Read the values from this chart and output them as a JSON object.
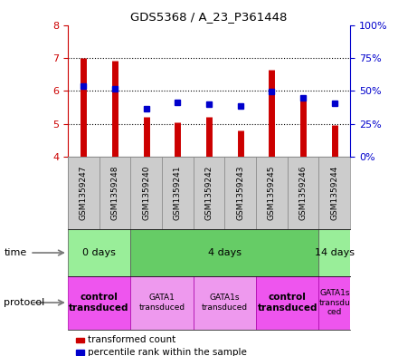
{
  "title": "GDS5368 / A_23_P361448",
  "samples": [
    "GSM1359247",
    "GSM1359248",
    "GSM1359240",
    "GSM1359241",
    "GSM1359242",
    "GSM1359243",
    "GSM1359245",
    "GSM1359246",
    "GSM1359244"
  ],
  "transformed_count": [
    7.0,
    6.9,
    5.2,
    5.05,
    5.2,
    4.8,
    6.65,
    5.8,
    4.95
  ],
  "percentile_rank": [
    6.15,
    6.05,
    5.45,
    5.65,
    5.6,
    5.55,
    5.97,
    5.78,
    5.62
  ],
  "bar_bottom": 4.0,
  "ylim": [
    4.0,
    8.0
  ],
  "yticks_left": [
    4,
    5,
    6,
    7,
    8
  ],
  "right_labels": [
    "0%",
    "25%",
    "50%",
    "75%",
    "100%"
  ],
  "bar_color": "#cc0000",
  "dot_color": "#0000cc",
  "sample_bg": "#cccccc",
  "time_groups": [
    {
      "label": "0 days",
      "start": 0,
      "end": 2,
      "color": "#99ee99"
    },
    {
      "label": "4 days",
      "start": 2,
      "end": 8,
      "color": "#66cc66"
    },
    {
      "label": "14 days",
      "start": 8,
      "end": 9,
      "color": "#99ee99"
    }
  ],
  "protocol_groups": [
    {
      "label": "control\ntransduced",
      "start": 0,
      "end": 2,
      "color": "#ee55ee",
      "bold": true
    },
    {
      "label": "GATA1\ntransduced",
      "start": 2,
      "end": 4,
      "color": "#ee99ee",
      "bold": false
    },
    {
      "label": "GATA1s\ntransduced",
      "start": 4,
      "end": 6,
      "color": "#ee99ee",
      "bold": false
    },
    {
      "label": "control\ntransduced",
      "start": 6,
      "end": 8,
      "color": "#ee55ee",
      "bold": true
    },
    {
      "label": "GATA1s\ntransdu\nced",
      "start": 8,
      "end": 9,
      "color": "#ee55ee",
      "bold": false
    }
  ],
  "background_color": "#ffffff",
  "tick_label_color_left": "#cc0000",
  "tick_label_color_right": "#0000cc",
  "legend_items": [
    {
      "color": "#cc0000",
      "label": "transformed count"
    },
    {
      "color": "#0000cc",
      "label": "percentile rank within the sample"
    }
  ]
}
